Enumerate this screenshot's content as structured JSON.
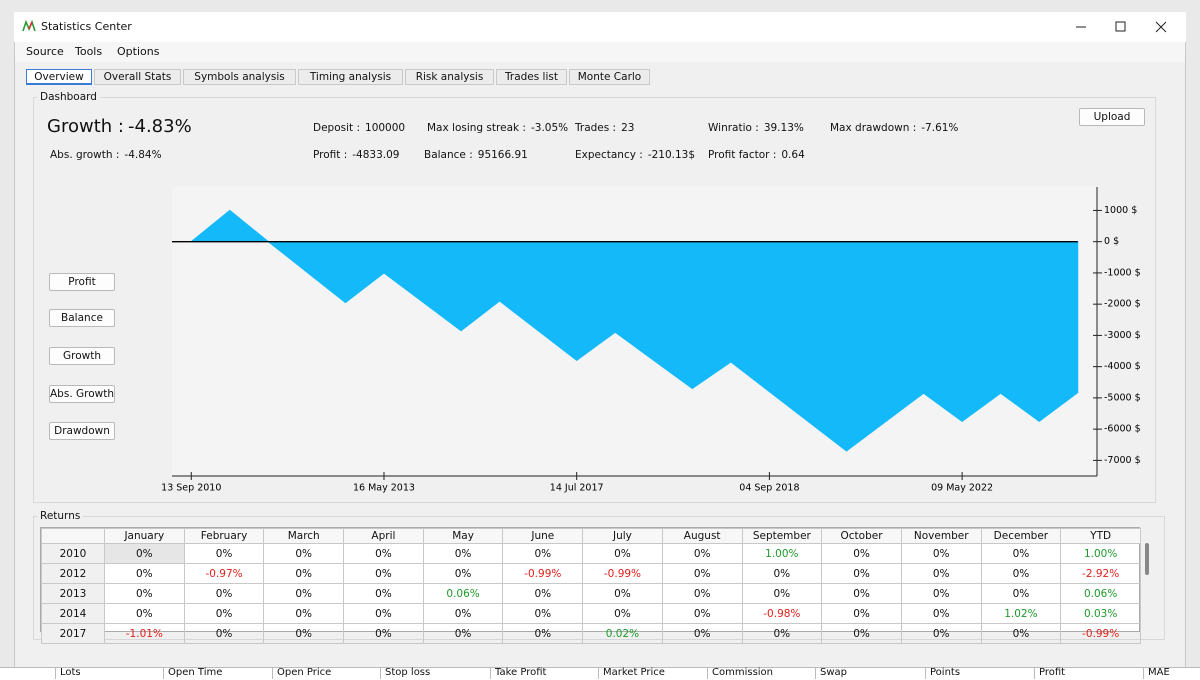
{
  "window": {
    "title": "Statistics Center"
  },
  "menu": [
    "Source",
    "Tools",
    "Options"
  ],
  "tabs": [
    "Overview",
    "Overall Stats",
    "Symbols analysis",
    "Timing analysis",
    "Risk analysis",
    "Trades list",
    "Monte Carlo"
  ],
  "dashboard": {
    "label": "Dashboard",
    "growth_label": "Growth :",
    "growth_value": "-4.83%",
    "stats": [
      {
        "label": "Abs. growth :",
        "value": "-4.84%"
      },
      {
        "label": "Deposit :",
        "value": "100000"
      },
      {
        "label": "Profit :",
        "value": "-4833.09"
      },
      {
        "label": "Max losing streak :",
        "value": "-3.05%"
      },
      {
        "label": "Balance :",
        "value": "95166.91"
      },
      {
        "label": "Trades :",
        "value": "23"
      },
      {
        "label": "Expectancy :",
        "value": "-210.13$"
      },
      {
        "label": "Winratio :",
        "value": "39.13%"
      },
      {
        "label": "Profit factor :",
        "value": "0.64"
      },
      {
        "label": "Max drawdown :",
        "value": "-7.61%"
      }
    ],
    "upload": "Upload",
    "buttons": [
      "Profit",
      "Balance",
      "Growth",
      "Abs. Growth",
      "Drawdown"
    ]
  },
  "chart_data": {
    "type": "area",
    "color": "#14b9f9",
    "x": [
      0,
      1,
      2,
      4,
      5,
      7,
      8,
      10,
      11,
      13,
      14,
      17,
      19,
      20,
      21,
      22,
      23
    ],
    "values": [
      0,
      1000,
      0,
      -1950,
      -1000,
      -2850,
      -1900,
      -3800,
      -2900,
      -4700,
      -3850,
      -6700,
      -4850,
      -5750,
      -4850,
      -5750,
      -4833.09
    ],
    "xlim": [
      -0.5,
      23.5
    ],
    "xticks": [
      {
        "value": 0,
        "label": "13 Sep 2010"
      },
      {
        "value": 5,
        "label": "16 May 2013"
      },
      {
        "value": 10,
        "label": "14 Jul 2017"
      },
      {
        "value": 15,
        "label": "04 Sep 2018"
      },
      {
        "value": 20,
        "label": "09 May 2022"
      }
    ],
    "ylim": [
      -7500,
      1750
    ],
    "yticks": [
      {
        "value": 1000,
        "label": "1000 $"
      },
      {
        "value": 0,
        "label": "0 $"
      },
      {
        "value": -1000,
        "label": "-1000 $"
      },
      {
        "value": -2000,
        "label": "-2000 $"
      },
      {
        "value": -3000,
        "label": "-3000 $"
      },
      {
        "value": -4000,
        "label": "-4000 $"
      },
      {
        "value": -5000,
        "label": "-5000 $"
      },
      {
        "value": -6000,
        "label": "-6000 $"
      },
      {
        "value": -7000,
        "label": "-7000 $"
      }
    ]
  },
  "returns": {
    "label": "Returns",
    "columns": [
      "January",
      "February",
      "March",
      "April",
      "May",
      "June",
      "July",
      "August",
      "September",
      "October",
      "November",
      "December",
      "YTD"
    ],
    "rows": [
      {
        "year": "2010",
        "cells": [
          "0%",
          "0%",
          "0%",
          "0%",
          "0%",
          "0%",
          "0%",
          "0%",
          "1.00%",
          "0%",
          "0%",
          "0%",
          "1.00%"
        ]
      },
      {
        "year": "2012",
        "cells": [
          "0%",
          "-0.97%",
          "0%",
          "0%",
          "0%",
          "-0.99%",
          "-0.99%",
          "0%",
          "0%",
          "0%",
          "0%",
          "0%",
          "-2.92%"
        ]
      },
      {
        "year": "2013",
        "cells": [
          "0%",
          "0%",
          "0%",
          "0%",
          "0.06%",
          "0%",
          "0%",
          "0%",
          "0%",
          "0%",
          "0%",
          "0%",
          "0.06%"
        ]
      },
      {
        "year": "2014",
        "cells": [
          "0%",
          "0%",
          "0%",
          "0%",
          "0%",
          "0%",
          "0%",
          "0%",
          "-0.98%",
          "0%",
          "0%",
          "1.02%",
          "0.03%"
        ]
      },
      {
        "year": "2017",
        "cells": [
          "-1.01%",
          "0%",
          "0%",
          "0%",
          "0%",
          "0%",
          "0.02%",
          "0%",
          "0%",
          "0%",
          "0%",
          "0%",
          "-0.99%"
        ]
      }
    ]
  },
  "bottom_columns": [
    "Lots",
    "Open Time",
    "Open Price",
    "Stop loss",
    "Take Profit",
    "Market Price",
    "Commission",
    "Swap",
    "Points",
    "Profit",
    "MAE"
  ]
}
